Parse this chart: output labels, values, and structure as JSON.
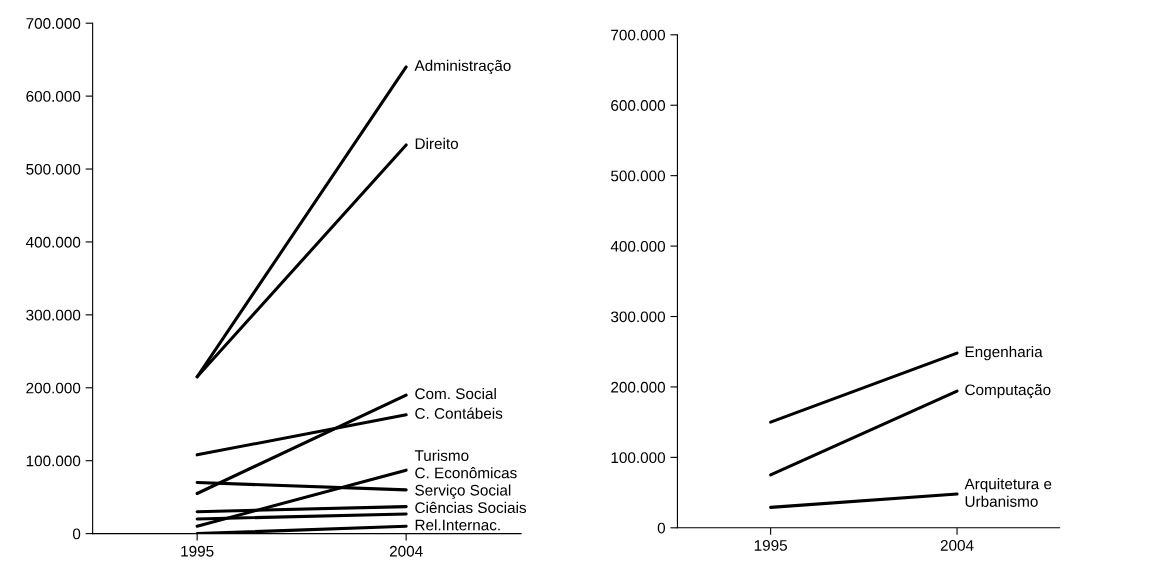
{
  "chart_data": [
    {
      "type": "line",
      "categories": [
        "1995",
        "2004"
      ],
      "ylim": [
        0,
        700000
      ],
      "yticks": [
        0,
        {
          "value": 100000,
          "label": "100.000"
        },
        {
          "value": 200000,
          "label": "200.000"
        },
        {
          "value": 300000,
          "label": "300.000"
        },
        {
          "value": 400000,
          "label": "400.000"
        },
        {
          "value": 500000,
          "label": "500.000"
        },
        {
          "value": 600000,
          "label": "600.000"
        },
        {
          "value": 700000,
          "label": "700.000"
        }
      ],
      "grid": false,
      "legend": false,
      "marker": "none",
      "line_style": "solid",
      "series": [
        {
          "name": "Administração",
          "color": "#000000",
          "values": [
            215000,
            640000
          ]
        },
        {
          "name": "Direito",
          "color": "#000000",
          "values": [
            215000,
            533000
          ]
        },
        {
          "name": "Com. Social",
          "color": "#000000",
          "values": [
            55000,
            190000
          ]
        },
        {
          "name": "C. Contábeis",
          "color": "#000000",
          "values": [
            108000,
            163000
          ]
        },
        {
          "name": "Turismo",
          "color": "#000000",
          "values": [
            10000,
            87000
          ]
        },
        {
          "name": "C. Econômicas",
          "color": "#000000",
          "values": [
            70000,
            60000
          ]
        },
        {
          "name": "Serviço Social",
          "color": "#000000",
          "values": [
            30000,
            37000
          ]
        },
        {
          "name": "Ciências Sociais",
          "color": "#000000",
          "values": [
            20000,
            27000
          ]
        },
        {
          "name": "Rel.Internac.",
          "color": "#000000",
          "values": [
            0,
            10000
          ]
        }
      ]
    },
    {
      "type": "line",
      "categories": [
        "1995",
        "2004"
      ],
      "ylim": [
        0,
        700000
      ],
      "yticks": [
        0,
        {
          "value": 100000,
          "label": "100.000"
        },
        {
          "value": 200000,
          "label": "200.000"
        },
        {
          "value": 300000,
          "label": "300.000"
        },
        {
          "value": 400000,
          "label": "400.000"
        },
        {
          "value": 500000,
          "label": "500.000"
        },
        {
          "value": 600000,
          "label": "600.000"
        },
        {
          "value": 700000,
          "label": "700.000"
        }
      ],
      "grid": false,
      "legend": false,
      "marker": "none",
      "line_style": "solid",
      "series": [
        {
          "name": "Engenharia",
          "color": "#000000",
          "values": [
            150000,
            248000
          ]
        },
        {
          "name": "Computação",
          "color": "#000000",
          "values": [
            75000,
            194000
          ]
        },
        {
          "name": "Arquitetura e\nUrbanismo",
          "color": "#000000",
          "values": [
            29000,
            48000
          ]
        }
      ]
    }
  ]
}
